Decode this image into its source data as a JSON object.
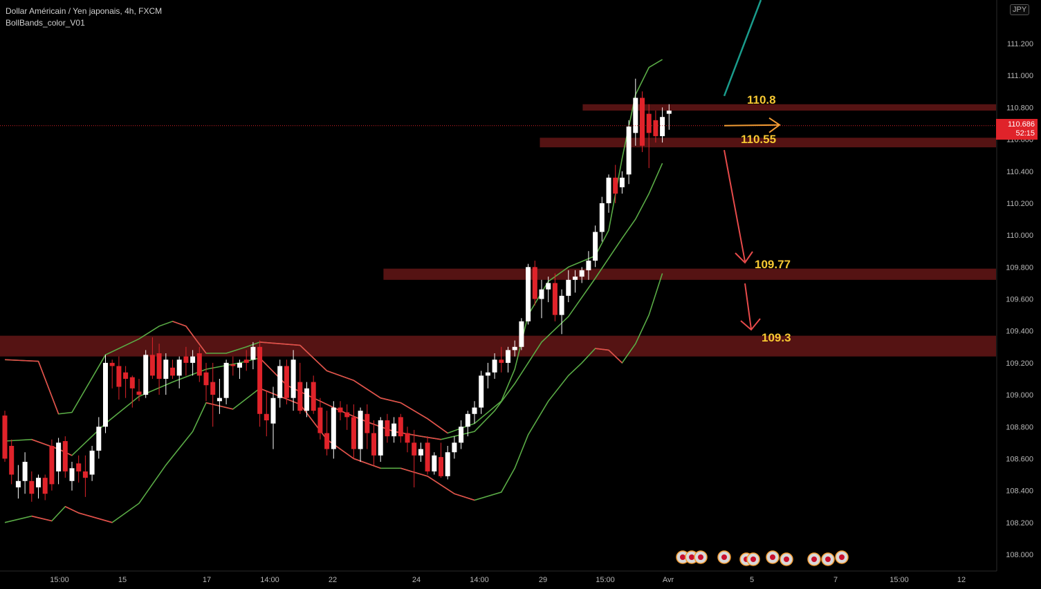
{
  "header": {
    "title": "Dollar Américain / Yen japonais, 4h, FXCM",
    "indicator": "BollBands_color_V01",
    "currency": "JPY"
  },
  "price_tag": {
    "price": "110.686",
    "countdown": "52:15"
  },
  "colors": {
    "background": "#000000",
    "bull_body": "#ffffff",
    "bear_body": "#e0232a",
    "upper_band": "#5aac46",
    "lower_band": "#e84b4b",
    "zone": "#5a1414",
    "level_text": "#f7c832",
    "price_line": "#e0232a",
    "scenario_up": "#1a9c8c",
    "scenario_sideways": "#f39c34",
    "scenario_down": "#e84b4b"
  },
  "chart_data": {
    "type": "candlestick",
    "symbol": "USDJPY",
    "timeframe": "4h",
    "ylim": [
      107.8,
      111.45
    ],
    "y_ticks": [
      "108.000",
      "108.200",
      "108.400",
      "108.600",
      "108.800",
      "109.000",
      "109.200",
      "109.400",
      "109.600",
      "109.800",
      "110.000",
      "110.200",
      "110.400",
      "110.600",
      "110.800",
      "111.000",
      "111.200"
    ],
    "x_ticks": [
      "15:00",
      "15",
      "17",
      "14:00",
      "22",
      "24",
      "14:00",
      "29",
      "15:00",
      "Avr",
      "5",
      "7",
      "15:00",
      "12"
    ],
    "candles_count": 100,
    "candles": [
      [
        108.87,
        108.9,
        108.58,
        108.6
      ],
      [
        108.68,
        108.72,
        108.44,
        108.5
      ],
      [
        108.42,
        108.56,
        108.35,
        108.46
      ],
      [
        108.46,
        108.64,
        108.38,
        108.58
      ],
      [
        108.46,
        108.52,
        108.33,
        108.38
      ],
      [
        108.42,
        108.5,
        108.35,
        108.48
      ],
      [
        108.48,
        108.5,
        108.34,
        108.38
      ],
      [
        108.68,
        108.72,
        108.4,
        108.44
      ],
      [
        108.52,
        108.73,
        108.44,
        108.7
      ],
      [
        108.71,
        108.74,
        108.48,
        108.52
      ],
      [
        108.46,
        108.58,
        108.4,
        108.54
      ],
      [
        108.57,
        108.62,
        108.45,
        108.52
      ],
      [
        108.52,
        108.62,
        108.36,
        108.48
      ],
      [
        108.5,
        108.68,
        108.46,
        108.65
      ],
      [
        108.65,
        108.86,
        108.6,
        108.8
      ],
      [
        108.8,
        109.25,
        108.76,
        109.2
      ],
      [
        109.2,
        109.22,
        109.04,
        109.18
      ],
      [
        109.18,
        109.24,
        108.97,
        109.05
      ],
      [
        109.14,
        109.18,
        108.98,
        109.1
      ],
      [
        109.11,
        109.12,
        108.92,
        109.04
      ],
      [
        109.02,
        109.1,
        108.96,
        109.0
      ],
      [
        109.0,
        109.28,
        108.98,
        109.25
      ],
      [
        109.25,
        109.36,
        109.1,
        109.12
      ],
      [
        109.26,
        109.32,
        109.0,
        109.1
      ],
      [
        109.1,
        109.26,
        109.0,
        109.22
      ],
      [
        109.17,
        109.22,
        109.1,
        109.12
      ],
      [
        109.12,
        109.24,
        109.04,
        109.22
      ],
      [
        109.24,
        109.3,
        109.12,
        109.2
      ],
      [
        109.2,
        109.28,
        109.12,
        109.24
      ],
      [
        109.26,
        109.3,
        109.08,
        109.12
      ],
      [
        109.14,
        109.2,
        108.96,
        109.06
      ],
      [
        109.08,
        109.2,
        108.8,
        109.0
      ],
      [
        108.96,
        109.1,
        108.88,
        108.98
      ],
      [
        108.98,
        109.22,
        108.94,
        109.2
      ],
      [
        109.19,
        109.24,
        109.12,
        109.18
      ],
      [
        109.17,
        109.22,
        109.1,
        109.2
      ],
      [
        109.22,
        109.28,
        109.15,
        109.2
      ],
      [
        109.22,
        109.33,
        109.16,
        109.3
      ],
      [
        109.3,
        109.34,
        108.8,
        108.88
      ],
      [
        108.88,
        109.02,
        108.74,
        108.84
      ],
      [
        108.82,
        109.05,
        108.66,
        108.98
      ],
      [
        108.98,
        109.22,
        108.92,
        109.18
      ],
      [
        109.18,
        109.22,
        108.94,
        108.98
      ],
      [
        108.98,
        109.28,
        108.9,
        109.22
      ],
      [
        109.08,
        109.2,
        108.88,
        108.9
      ],
      [
        108.9,
        109.08,
        108.86,
        109.04
      ],
      [
        109.08,
        109.12,
        108.88,
        108.9
      ],
      [
        108.92,
        108.98,
        108.72,
        108.76
      ],
      [
        108.76,
        108.9,
        108.62,
        108.66
      ],
      [
        108.66,
        108.96,
        108.6,
        108.92
      ],
      [
        108.92,
        108.96,
        108.84,
        108.89
      ],
      [
        108.89,
        108.94,
        108.78,
        108.86
      ],
      [
        108.86,
        108.94,
        108.6,
        108.66
      ],
      [
        108.66,
        108.92,
        108.58,
        108.9
      ],
      [
        108.88,
        108.94,
        108.66,
        108.76
      ],
      [
        108.76,
        108.84,
        108.56,
        108.62
      ],
      [
        108.62,
        108.86,
        108.58,
        108.84
      ],
      [
        108.84,
        108.88,
        108.7,
        108.74
      ],
      [
        108.74,
        108.86,
        108.7,
        108.82
      ],
      [
        108.86,
        108.88,
        108.7,
        108.74
      ],
      [
        108.76,
        108.8,
        108.64,
        108.7
      ],
      [
        108.7,
        108.78,
        108.42,
        108.62
      ],
      [
        108.62,
        108.7,
        108.58,
        108.66
      ],
      [
        108.7,
        108.74,
        108.5,
        108.52
      ],
      [
        108.52,
        108.64,
        108.5,
        108.62
      ],
      [
        108.61,
        108.7,
        108.48,
        108.49
      ],
      [
        108.49,
        108.68,
        108.47,
        108.64
      ],
      [
        108.64,
        108.74,
        108.6,
        108.7
      ],
      [
        108.7,
        108.84,
        108.66,
        108.8
      ],
      [
        108.8,
        108.9,
        108.74,
        108.88
      ],
      [
        108.88,
        108.96,
        108.82,
        108.92
      ],
      [
        108.92,
        109.15,
        108.88,
        109.12
      ],
      [
        109.12,
        109.2,
        109.04,
        109.14
      ],
      [
        109.14,
        109.26,
        109.1,
        109.22
      ],
      [
        109.22,
        109.3,
        109.14,
        109.2
      ],
      [
        109.2,
        109.3,
        109.14,
        109.28
      ],
      [
        109.28,
        109.34,
        109.24,
        109.3
      ],
      [
        109.3,
        109.48,
        109.28,
        109.46
      ],
      [
        109.46,
        109.82,
        109.44,
        109.8
      ],
      [
        109.8,
        109.84,
        109.56,
        109.6
      ],
      [
        109.6,
        109.72,
        109.48,
        109.66
      ],
      [
        109.66,
        109.74,
        109.58,
        109.7
      ],
      [
        109.7,
        109.76,
        109.46,
        109.5
      ],
      [
        109.5,
        109.66,
        109.38,
        109.62
      ],
      [
        109.62,
        109.78,
        109.58,
        109.72
      ],
      [
        109.72,
        109.78,
        109.64,
        109.74
      ],
      [
        109.74,
        109.8,
        109.7,
        109.78
      ],
      [
        109.78,
        109.9,
        109.72,
        109.84
      ],
      [
        109.84,
        110.06,
        109.8,
        110.02
      ],
      [
        110.02,
        110.24,
        109.96,
        110.2
      ],
      [
        110.2,
        110.38,
        110.14,
        110.36
      ],
      [
        110.36,
        110.44,
        110.2,
        110.26
      ],
      [
        110.3,
        110.4,
        110.26,
        110.36
      ],
      [
        110.38,
        110.72,
        110.32,
        110.68
      ],
      [
        110.64,
        110.98,
        110.56,
        110.86
      ],
      [
        110.86,
        110.9,
        110.52,
        110.56
      ],
      [
        110.76,
        110.82,
        110.42,
        110.64
      ],
      [
        110.72,
        110.78,
        110.58,
        110.62
      ],
      [
        110.62,
        110.8,
        110.58,
        110.74
      ],
      [
        110.76,
        110.82,
        110.66,
        110.78
      ]
    ],
    "bands": {
      "upper": [
        [
          0,
          109.22
        ],
        [
          5,
          109.21
        ],
        [
          8,
          108.88
        ],
        [
          10,
          108.89
        ],
        [
          15,
          109.25
        ],
        [
          20,
          109.35
        ],
        [
          23,
          109.43
        ],
        [
          25,
          109.46
        ],
        [
          27,
          109.43
        ],
        [
          30,
          109.26
        ],
        [
          33,
          109.26
        ],
        [
          36,
          109.3
        ],
        [
          38,
          109.33
        ],
        [
          44,
          109.31
        ],
        [
          48,
          109.15
        ],
        [
          52,
          109.09
        ],
        [
          56,
          108.98
        ],
        [
          59,
          108.95
        ],
        [
          63,
          108.85
        ],
        [
          66,
          108.76
        ],
        [
          70,
          108.82
        ],
        [
          74,
          108.96
        ],
        [
          76,
          109.16
        ],
        [
          78,
          109.5
        ],
        [
          81,
          109.71
        ],
        [
          84,
          109.8
        ],
        [
          88,
          109.87
        ],
        [
          90,
          110.03
        ],
        [
          92,
          110.48
        ],
        [
          94,
          110.88
        ],
        [
          96,
          111.05
        ],
        [
          98,
          111.1
        ]
      ],
      "middle": [
        [
          0,
          108.71
        ],
        [
          4,
          108.72
        ],
        [
          8,
          108.66
        ],
        [
          10,
          108.62
        ],
        [
          15,
          108.82
        ],
        [
          20,
          108.99
        ],
        [
          25,
          109.08
        ],
        [
          30,
          109.16
        ],
        [
          35,
          109.2
        ],
        [
          38,
          109.23
        ],
        [
          42,
          109.06
        ],
        [
          46,
          108.98
        ],
        [
          50,
          108.9
        ],
        [
          54,
          108.83
        ],
        [
          58,
          108.77
        ],
        [
          62,
          108.74
        ],
        [
          65,
          108.72
        ],
        [
          70,
          108.77
        ],
        [
          73,
          108.9
        ],
        [
          76,
          109.07
        ],
        [
          80,
          109.33
        ],
        [
          84,
          109.49
        ],
        [
          88,
          109.73
        ],
        [
          92,
          109.98
        ],
        [
          94,
          110.1
        ],
        [
          96,
          110.26
        ],
        [
          98,
          110.45
        ]
      ],
      "lower": [
        [
          0,
          108.2
        ],
        [
          4,
          108.24
        ],
        [
          7,
          108.21
        ],
        [
          9,
          108.3
        ],
        [
          11,
          108.26
        ],
        [
          16,
          108.2
        ],
        [
          20,
          108.32
        ],
        [
          24,
          108.56
        ],
        [
          28,
          108.77
        ],
        [
          30,
          108.95
        ],
        [
          34,
          108.91
        ],
        [
          38,
          109.04
        ],
        [
          44,
          108.94
        ],
        [
          48,
          108.72
        ],
        [
          52,
          108.6
        ],
        [
          56,
          108.54
        ],
        [
          59,
          108.54
        ],
        [
          63,
          108.49
        ],
        [
          67,
          108.38
        ],
        [
          70,
          108.34
        ],
        [
          74,
          108.39
        ],
        [
          76,
          108.54
        ],
        [
          78,
          108.75
        ],
        [
          81,
          108.96
        ],
        [
          84,
          109.12
        ],
        [
          86,
          109.2
        ],
        [
          88,
          109.29
        ],
        [
          90,
          109.28
        ],
        [
          92,
          109.2
        ],
        [
          94,
          109.32
        ],
        [
          96,
          109.5
        ],
        [
          98,
          109.76
        ]
      ]
    },
    "zones": [
      {
        "from": 110.78,
        "to": 110.82,
        "x_start": 0.585
      },
      {
        "from": 110.55,
        "to": 110.61,
        "x_start": 0.542
      },
      {
        "from": 109.72,
        "to": 109.79,
        "x_start": 0.385
      },
      {
        "from": 109.24,
        "to": 109.37,
        "x_start": 0.0
      }
    ],
    "levels": [
      "110.8",
      "110.55",
      "109.77",
      "109.3"
    ],
    "last_price": 110.686,
    "scenarios": [
      {
        "kind": "up",
        "points": [
          [
            110.85,
            0
          ],
          [
            111.45,
            1
          ]
        ]
      },
      {
        "kind": "sideways",
        "points": [
          [
            110.686,
            0
          ],
          [
            110.686,
            1
          ]
        ]
      },
      {
        "kind": "down",
        "points": [
          [
            110.55,
            0
          ],
          [
            109.77,
            1
          ],
          [
            109.3,
            2
          ]
        ]
      }
    ]
  }
}
